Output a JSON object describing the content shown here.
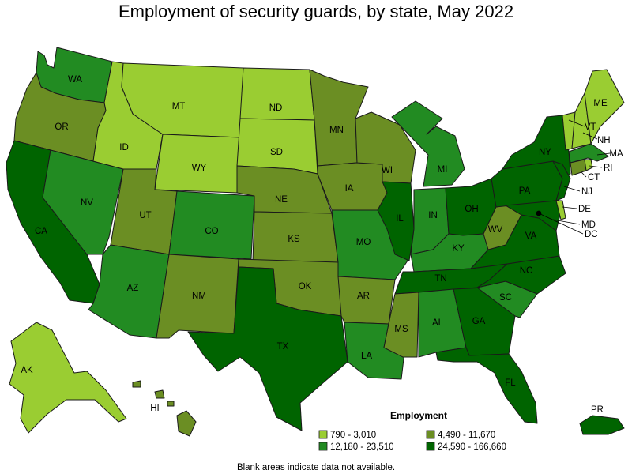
{
  "title": "Employment of security guards, by state, May 2022",
  "note": "Blank areas indicate data not available.",
  "legend": {
    "title": "Employment",
    "classes": [
      {
        "label": "790 - 3,010",
        "color": "#9acd32"
      },
      {
        "label": "4,490 - 11,670",
        "color": "#6b8e23"
      },
      {
        "label": "12,180 - 23,510",
        "color": "#228b22"
      },
      {
        "label": "24,590 - 166,660",
        "color": "#006400"
      }
    ]
  },
  "states": {
    "WA": {
      "label": "WA",
      "cls": 2
    },
    "OR": {
      "label": "OR",
      "cls": 1
    },
    "CA": {
      "label": "CA",
      "cls": 3
    },
    "NV": {
      "label": "NV",
      "cls": 2
    },
    "ID": {
      "label": "ID",
      "cls": 0
    },
    "MT": {
      "label": "MT",
      "cls": 0
    },
    "WY": {
      "label": "WY",
      "cls": 0
    },
    "UT": {
      "label": "UT",
      "cls": 1
    },
    "AZ": {
      "label": "AZ",
      "cls": 2
    },
    "CO": {
      "label": "CO",
      "cls": 2
    },
    "NM": {
      "label": "NM",
      "cls": 1
    },
    "ND": {
      "label": "ND",
      "cls": 0
    },
    "SD": {
      "label": "SD",
      "cls": 0
    },
    "NE": {
      "label": "NE",
      "cls": 1
    },
    "KS": {
      "label": "KS",
      "cls": 1
    },
    "OK": {
      "label": "OK",
      "cls": 1
    },
    "TX": {
      "label": "TX",
      "cls": 3
    },
    "MN": {
      "label": "MN",
      "cls": 1
    },
    "IA": {
      "label": "IA",
      "cls": 1
    },
    "MO": {
      "label": "MO",
      "cls": 2
    },
    "AR": {
      "label": "AR",
      "cls": 1
    },
    "LA": {
      "label": "LA",
      "cls": 2
    },
    "WI": {
      "label": "WI",
      "cls": 1
    },
    "IL": {
      "label": "IL",
      "cls": 3
    },
    "MI": {
      "label": "MI",
      "cls": 2
    },
    "IN": {
      "label": "IN",
      "cls": 2
    },
    "OH": {
      "label": "OH",
      "cls": 3
    },
    "KY": {
      "label": "KY",
      "cls": 2
    },
    "TN": {
      "label": "TN",
      "cls": 3
    },
    "MS": {
      "label": "MS",
      "cls": 1
    },
    "AL": {
      "label": "AL",
      "cls": 2
    },
    "GA": {
      "label": "GA",
      "cls": 3
    },
    "FL": {
      "label": "FL",
      "cls": 3
    },
    "SC": {
      "label": "SC",
      "cls": 2
    },
    "NC": {
      "label": "NC",
      "cls": 3
    },
    "VA": {
      "label": "VA",
      "cls": 3
    },
    "WV": {
      "label": "WV",
      "cls": 1
    },
    "PA": {
      "label": "PA",
      "cls": 3
    },
    "NY": {
      "label": "NY",
      "cls": 3
    },
    "VT": {
      "label": "VT",
      "cls": 0
    },
    "NH": {
      "label": "NH",
      "cls": 0
    },
    "ME": {
      "label": "ME",
      "cls": 0
    },
    "MA": {
      "label": "MA",
      "cls": 2
    },
    "RI": {
      "label": "RI",
      "cls": 0
    },
    "CT": {
      "label": "CT",
      "cls": 1
    },
    "NJ": {
      "label": "NJ",
      "cls": 3
    },
    "DE": {
      "label": "DE",
      "cls": 0
    },
    "MD": {
      "label": "MD",
      "cls": 3
    },
    "DC": {
      "label": "DC",
      "cls": 3
    },
    "AK": {
      "label": "AK",
      "cls": 0
    },
    "HI": {
      "label": "HI",
      "cls": 1
    },
    "PR": {
      "label": "PR",
      "cls": 3
    }
  }
}
